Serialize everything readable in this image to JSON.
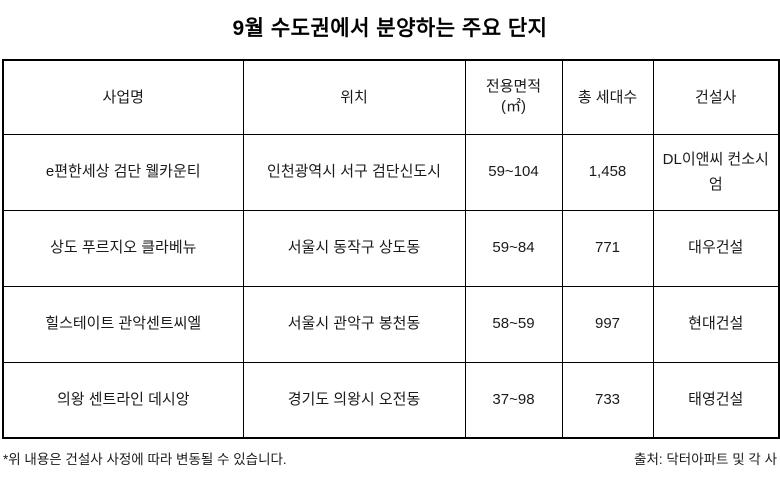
{
  "chart_data": {
    "type": "table",
    "title": "9월 수도권에서 분양하는 주요 단지",
    "columns": [
      {
        "label": "사업명"
      },
      {
        "label": "위치"
      },
      {
        "label": "전용면적",
        "unit": "(㎡)"
      },
      {
        "label": "총 세대수"
      },
      {
        "label": "건설사"
      }
    ],
    "rows": [
      [
        "e편한세상 검단 웰카운티",
        "인천광역시 서구 검단신도시",
        "59~104",
        "1,458",
        "DL이앤씨 컨소시엄"
      ],
      [
        "상도 푸르지오 클라베뉴",
        "서울시 동작구 상도동",
        "59~84",
        "771",
        "대우건설"
      ],
      [
        "힐스테이트 관악센트씨엘",
        "서울시 관악구 봉천동",
        "58~59",
        "997",
        "현대건설"
      ],
      [
        "의왕 센트라인 데시앙",
        "경기도 의왕시 오전동",
        "37~98",
        "733",
        "태영건설"
      ]
    ],
    "footnote": "*위 내용은 건설사 사정에 따라 변동될 수 있습니다.",
    "source": "출처: 닥터아파트 및 각 사",
    "layout": {
      "grid": "full-borders",
      "header_position": "top",
      "cell_alignment": "center"
    }
  },
  "colors": {
    "background": "#ffffff",
    "border": "#000000",
    "title_text": "#000000",
    "body_text": "#1a1a1a"
  }
}
